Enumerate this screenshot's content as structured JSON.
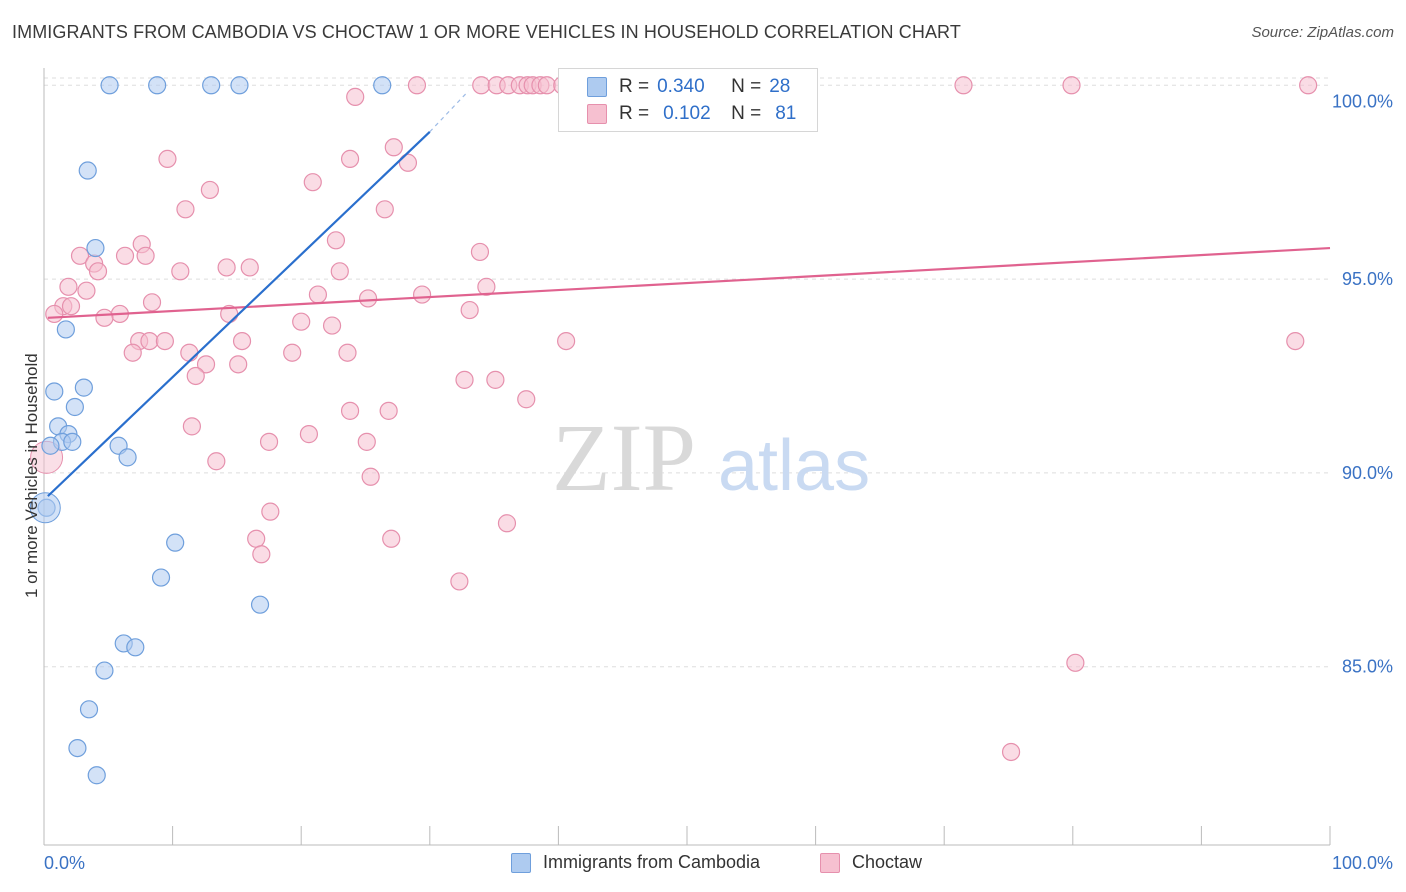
{
  "title": "IMMIGRANTS FROM CAMBODIA VS CHOCTAW 1 OR MORE VEHICLES IN HOUSEHOLD CORRELATION CHART",
  "source": "Source: ZipAtlas.com",
  "watermark": {
    "zip": "ZIP",
    "atlas": "atlas"
  },
  "colors": {
    "blue_fill": "#aecbf0",
    "blue_stroke": "#6f9fdc",
    "blue_line": "#2a6fcd",
    "pink_fill": "#f6c0d0",
    "pink_stroke": "#e690ad",
    "pink_line": "#e0628f",
    "tick_text": "#3a72c4",
    "grid": "#dedede"
  },
  "legend": {
    "rows": [
      {
        "r_label": "R =",
        "r_value": "0.340",
        "n_label": "N =",
        "n_value": "28"
      },
      {
        "r_label": "R =",
        "r_value": "0.102",
        "n_label": "N =",
        "n_value": "81"
      }
    ]
  },
  "bottom_legend": {
    "series1": "Immigrants from Cambodia",
    "series2": "Choctaw"
  },
  "chart_data": {
    "type": "scatter",
    "title": "IMMIGRANTS FROM CAMBODIA VS CHOCTAW 1 OR MORE VEHICLES IN HOUSEHOLD CORRELATION CHART",
    "xlabel": "",
    "ylabel": "1 or more Vehicles in Household",
    "xlim": [
      0,
      100
    ],
    "ylim": [
      80.4,
      100.6
    ],
    "x_tick_labels": [
      "0.0%",
      "100.0%"
    ],
    "y_ticks": [
      85,
      90,
      95,
      100
    ],
    "y_tick_labels": [
      "85.0%",
      "90.0%",
      "95.0%",
      "100.0%"
    ],
    "grid": true,
    "series": [
      {
        "name": "Immigrants from Cambodia",
        "R": 0.34,
        "N": 28,
        "trend": {
          "x0": 0.3,
          "y0": 89.4,
          "x1": 30.0,
          "y1": 98.8,
          "dash_x1": 33.0,
          "dash_y1": 99.85
        },
        "points": [
          [
            5.1,
            100.0
          ],
          [
            8.8,
            100.0
          ],
          [
            13.0,
            100.0
          ],
          [
            15.2,
            100.0
          ],
          [
            26.3,
            100.0
          ],
          [
            3.4,
            97.8
          ],
          [
            4.0,
            95.8
          ],
          [
            1.7,
            93.7
          ],
          [
            0.8,
            92.1
          ],
          [
            3.1,
            92.2
          ],
          [
            2.4,
            91.7
          ],
          [
            1.1,
            91.2
          ],
          [
            1.9,
            91.0
          ],
          [
            1.4,
            90.8
          ],
          [
            2.2,
            90.8
          ],
          [
            0.5,
            90.7
          ],
          [
            5.8,
            90.7
          ],
          [
            6.5,
            90.4
          ],
          [
            0.2,
            89.1
          ],
          [
            10.2,
            88.2
          ],
          [
            9.1,
            87.3
          ],
          [
            16.8,
            86.6
          ],
          [
            6.2,
            85.6
          ],
          [
            7.1,
            85.5
          ],
          [
            4.7,
            84.9
          ],
          [
            3.5,
            83.9
          ],
          [
            2.6,
            82.9
          ],
          [
            4.1,
            82.2
          ]
        ]
      },
      {
        "name": "Choctaw",
        "R": 0.102,
        "N": 81,
        "trend": {
          "x0": 0.3,
          "y0": 94.0,
          "x1": 100.0,
          "y1": 95.8
        },
        "points": [
          [
            29.0,
            100.0
          ],
          [
            34.0,
            100.0
          ],
          [
            35.2,
            100.0
          ],
          [
            36.1,
            100.0
          ],
          [
            37.0,
            100.0
          ],
          [
            37.6,
            100.0
          ],
          [
            38.0,
            100.0
          ],
          [
            38.6,
            100.0
          ],
          [
            39.1,
            100.0
          ],
          [
            40.3,
            100.0
          ],
          [
            71.5,
            100.0
          ],
          [
            79.9,
            100.0
          ],
          [
            98.3,
            100.0
          ],
          [
            24.2,
            99.7
          ],
          [
            27.2,
            98.4
          ],
          [
            9.6,
            98.1
          ],
          [
            23.8,
            98.1
          ],
          [
            28.3,
            98.0
          ],
          [
            20.9,
            97.5
          ],
          [
            12.9,
            97.3
          ],
          [
            11.0,
            96.8
          ],
          [
            26.5,
            96.8
          ],
          [
            7.6,
            95.9
          ],
          [
            22.7,
            96.0
          ],
          [
            2.8,
            95.6
          ],
          [
            6.3,
            95.6
          ],
          [
            7.9,
            95.6
          ],
          [
            33.9,
            95.7
          ],
          [
            3.9,
            95.4
          ],
          [
            10.6,
            95.2
          ],
          [
            14.2,
            95.3
          ],
          [
            16.0,
            95.3
          ],
          [
            23.0,
            95.2
          ],
          [
            4.2,
            95.2
          ],
          [
            1.9,
            94.8
          ],
          [
            3.3,
            94.7
          ],
          [
            34.4,
            94.8
          ],
          [
            21.3,
            94.6
          ],
          [
            29.4,
            94.6
          ],
          [
            25.2,
            94.5
          ],
          [
            8.4,
            94.4
          ],
          [
            1.5,
            94.3
          ],
          [
            2.1,
            94.3
          ],
          [
            0.8,
            94.1
          ],
          [
            5.9,
            94.1
          ],
          [
            14.4,
            94.1
          ],
          [
            33.1,
            94.2
          ],
          [
            4.7,
            94.0
          ],
          [
            20.0,
            93.9
          ],
          [
            22.4,
            93.8
          ],
          [
            7.4,
            93.4
          ],
          [
            8.2,
            93.4
          ],
          [
            9.4,
            93.4
          ],
          [
            15.4,
            93.4
          ],
          [
            40.6,
            93.4
          ],
          [
            97.3,
            93.4
          ],
          [
            6.9,
            93.1
          ],
          [
            11.3,
            93.1
          ],
          [
            19.3,
            93.1
          ],
          [
            23.6,
            93.1
          ],
          [
            12.6,
            92.8
          ],
          [
            15.1,
            92.8
          ],
          [
            11.8,
            92.5
          ],
          [
            32.7,
            92.4
          ],
          [
            35.1,
            92.4
          ],
          [
            37.5,
            91.9
          ],
          [
            23.8,
            91.6
          ],
          [
            26.8,
            91.6
          ],
          [
            11.5,
            91.2
          ],
          [
            20.6,
            91.0
          ],
          [
            17.5,
            90.8
          ],
          [
            25.1,
            90.8
          ],
          [
            13.4,
            90.3
          ],
          [
            25.4,
            89.9
          ],
          [
            17.6,
            89.0
          ],
          [
            36.0,
            88.7
          ],
          [
            16.5,
            88.3
          ],
          [
            27.0,
            88.3
          ],
          [
            16.9,
            87.9
          ],
          [
            32.3,
            87.2
          ],
          [
            80.2,
            85.1
          ],
          [
            75.2,
            82.8
          ]
        ]
      }
    ]
  }
}
